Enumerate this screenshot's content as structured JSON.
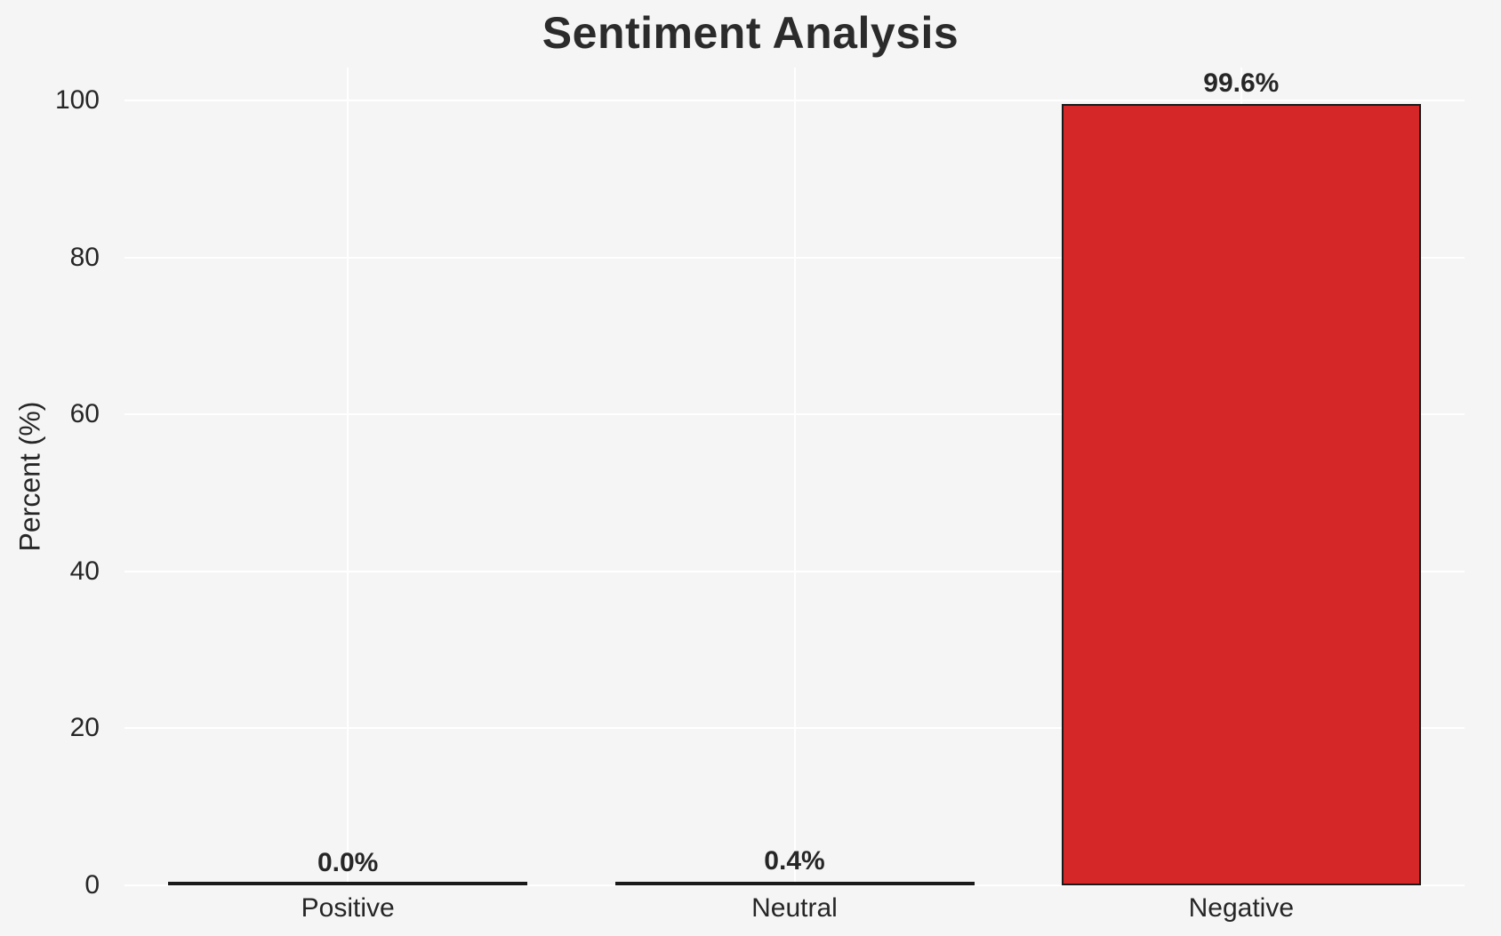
{
  "title": "Sentiment Analysis",
  "chart_data": {
    "type": "bar",
    "title": "Sentiment Analysis",
    "xlabel": "",
    "ylabel": "Percent (%)",
    "categories": [
      "Positive",
      "Neutral",
      "Negative"
    ],
    "values": [
      0.0,
      0.4,
      99.6
    ],
    "value_labels": [
      "0.0%",
      "0.4%",
      "99.6%"
    ],
    "bar_colors": [
      "#1a1a1a",
      "#1a1a1a",
      "#d62728"
    ],
    "bar_edge_color": "#1a1a1a",
    "yticks": [
      0,
      20,
      40,
      60,
      80,
      100
    ],
    "ylim": [
      0,
      104.2
    ],
    "grid": true,
    "grid_color": "#ffffff",
    "background_color": "#f5f5f5",
    "legend": "none"
  }
}
